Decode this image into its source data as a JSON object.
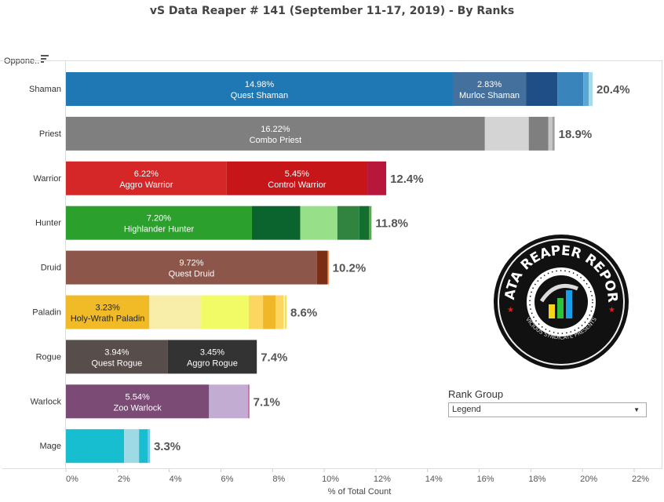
{
  "title": "vS Data Reaper #  141 (September 11-17, 2019) - By Ranks",
  "row_header": "Oppone..",
  "legend": {
    "title": "Rank Group",
    "selected": "Legend"
  },
  "logo": {
    "text_top": "DATA REAPER REPORT",
    "text_bottom": "VICIOUS SYNDICATE PRESENTS"
  },
  "chart_data": {
    "type": "bar",
    "orientation": "horizontal-stacked",
    "xlabel": "% of Total Count",
    "xlim": [
      0,
      22
    ],
    "xticks": [
      "0%",
      "2%",
      "4%",
      "6%",
      "8%",
      "10%",
      "12%",
      "14%",
      "16%",
      "18%",
      "20%",
      "22%"
    ],
    "categories": [
      "Shaman",
      "Priest",
      "Warrior",
      "Hunter",
      "Druid",
      "Paladin",
      "Rogue",
      "Warlock",
      "Mage"
    ],
    "totals": [
      "20.4%",
      "18.9%",
      "12.4%",
      "11.8%",
      "10.2%",
      "8.6%",
      "7.4%",
      "7.1%",
      "3.3%"
    ],
    "rows": [
      {
        "segments": [
          {
            "value": 14.98,
            "label": "14.98%",
            "name": "Quest Shaman",
            "color": "#1f77b4"
          },
          {
            "value": 2.83,
            "label": "2.83%",
            "name": "Murloc Shaman",
            "color": "#44709e"
          },
          {
            "value": 1.22,
            "color": "#1f4e87"
          },
          {
            "value": 1.0,
            "color": "#3884bb"
          },
          {
            "value": 0.21,
            "color": "#5aa6d6"
          },
          {
            "value": 0.15,
            "color": "#a6dce9"
          }
        ]
      },
      {
        "segments": [
          {
            "value": 16.22,
            "label": "16.22%",
            "name": "Combo Priest",
            "color": "#7f7f7f"
          },
          {
            "value": 1.7,
            "color": "#d4d4d4"
          },
          {
            "value": 0.76,
            "color": "#7f7f7f"
          },
          {
            "value": 0.15,
            "color": "#c7c7c7"
          },
          {
            "value": 0.09,
            "color": "#a0a0a0"
          }
        ]
      },
      {
        "segments": [
          {
            "value": 6.22,
            "label": "6.22%",
            "name": "Aggro Warrior",
            "color": "#d62728"
          },
          {
            "value": 5.45,
            "label": "5.45%",
            "name": "Control Warrior",
            "color": "#c7161a"
          },
          {
            "value": 0.73,
            "color": "#b8163b"
          }
        ]
      },
      {
        "segments": [
          {
            "value": 7.2,
            "label": "7.20%",
            "name": "Highlander Hunter",
            "color": "#2ca02c"
          },
          {
            "value": 1.87,
            "color": "#0b642d"
          },
          {
            "value": 1.44,
            "color": "#98df8a"
          },
          {
            "value": 0.85,
            "color": "#31843f"
          },
          {
            "value": 0.38,
            "color": "#136e30"
          },
          {
            "value": 0.09,
            "color": "#5aaa50"
          }
        ]
      },
      {
        "segments": [
          {
            "value": 9.72,
            "label": "9.72%",
            "name": "Quest Druid",
            "color": "#8c564b"
          },
          {
            "value": 0.4,
            "color": "#7a2e14"
          },
          {
            "value": 0.05,
            "color": "#e86a1a"
          }
        ]
      },
      {
        "segments": [
          {
            "value": 3.23,
            "label": "3.23%",
            "name": "Holy-Wrath Paladin",
            "color": "#f0bb27",
            "dark_text": true
          },
          {
            "value": 2.0,
            "color": "#f8eeaa"
          },
          {
            "value": 1.85,
            "color": "#f0fb66"
          },
          {
            "value": 0.55,
            "color": "#fdd662"
          },
          {
            "value": 0.49,
            "color": "#f0b828"
          },
          {
            "value": 0.3,
            "color": "#fdd662"
          },
          {
            "value": 0.06,
            "color": "#fff6b0"
          },
          {
            "value": 0.06,
            "color": "#f5dd60"
          }
        ]
      },
      {
        "segments": [
          {
            "value": 3.94,
            "label": "3.94%",
            "name": "Quest Rogue",
            "color": "#574d4a"
          },
          {
            "value": 3.45,
            "label": "3.45%",
            "name": "Aggro Rogue",
            "color": "#333333"
          }
        ]
      },
      {
        "segments": [
          {
            "value": 5.54,
            "label": "5.54%",
            "name": "Zoo Warlock",
            "color": "#7b4b76"
          },
          {
            "value": 1.52,
            "color": "#c3acd2"
          },
          {
            "value": 0.04,
            "color": "#c040a0"
          }
        ]
      },
      {
        "segments": [
          {
            "value": 2.25,
            "color": "#17becf"
          },
          {
            "value": 0.58,
            "color": "#9edae5"
          },
          {
            "value": 0.33,
            "color": "#17becf"
          },
          {
            "value": 0.09,
            "color": "#6cc9f0"
          }
        ]
      }
    ]
  }
}
